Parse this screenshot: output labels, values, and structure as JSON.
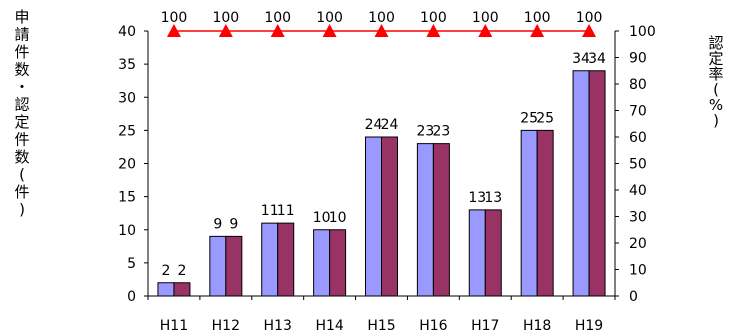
{
  "chart_data": {
    "type": "bar",
    "categories": [
      "H11",
      "H12",
      "H13",
      "H14",
      "H15",
      "H16",
      "H17",
      "H18",
      "H19"
    ],
    "series": [
      {
        "values": [
          2,
          9,
          11,
          10,
          24,
          23,
          13,
          25,
          34
        ],
        "color": "#9999ff",
        "axis": "left"
      },
      {
        "values": [
          2,
          9,
          11,
          10,
          24,
          23,
          13,
          25,
          34
        ],
        "color": "#993366",
        "axis": "left"
      },
      {
        "type": "line",
        "values": [
          100,
          100,
          100,
          100,
          100,
          100,
          100,
          100,
          100
        ],
        "color": "#ff0000",
        "marker": "triangle",
        "axis": "right"
      }
    ],
    "bar_labels_a": [
      "2",
      "9",
      "11",
      "10",
      "24",
      "23",
      "13",
      "25",
      "34"
    ],
    "bar_labels_b": [
      "2",
      "9",
      "11",
      "10",
      "24",
      "23",
      "13",
      "25",
      "34"
    ],
    "line_labels": [
      "100",
      "100",
      "100",
      "100",
      "100",
      "100",
      "100",
      "100",
      "100"
    ],
    "ylabel": "申請件数・認定件数(件)",
    "y2label": "認定率(%)",
    "ylim": [
      0,
      40
    ],
    "y2lim": [
      0,
      100
    ],
    "yticks": [
      "0",
      "5",
      "10",
      "15",
      "20",
      "25",
      "30",
      "35",
      "40"
    ],
    "y2ticks": [
      "0",
      "10",
      "20",
      "30",
      "40",
      "50",
      "60",
      "70",
      "80",
      "90",
      "100"
    ],
    "grid": false,
    "legend": "none"
  }
}
